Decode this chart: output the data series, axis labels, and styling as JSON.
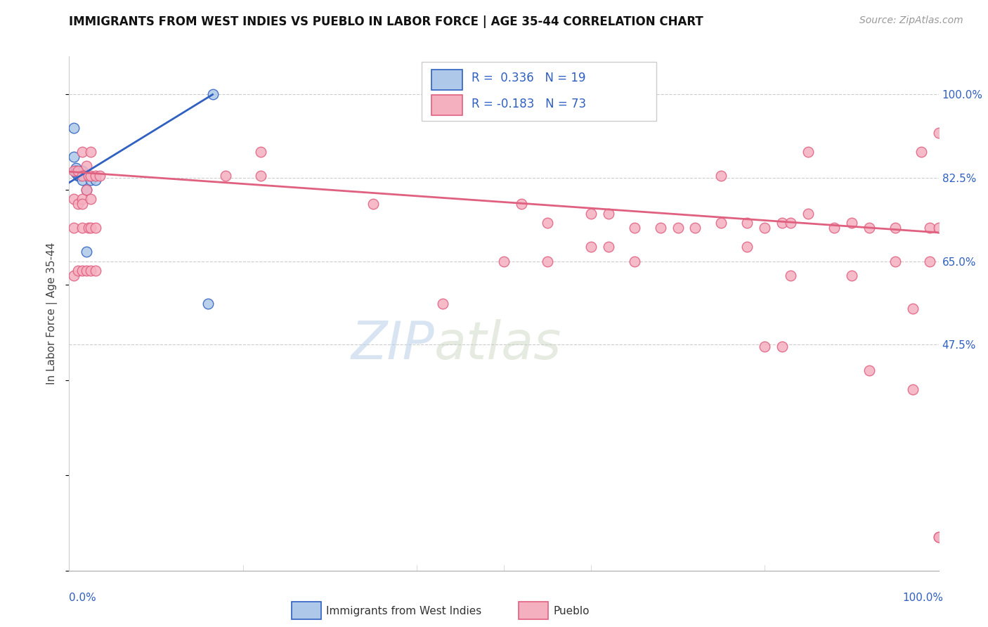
{
  "title": "IMMIGRANTS FROM WEST INDIES VS PUEBLO IN LABOR FORCE | AGE 35-44 CORRELATION CHART",
  "source": "Source: ZipAtlas.com",
  "ylabel": "In Labor Force | Age 35-44",
  "legend_blue_r": "R =  0.336",
  "legend_blue_n": "N = 19",
  "legend_pink_r": "R = -0.183",
  "legend_pink_n": "N = 73",
  "blue_scatter_x": [
    0.005,
    0.005,
    0.008,
    0.008,
    0.008,
    0.01,
    0.01,
    0.01,
    0.012,
    0.012,
    0.012,
    0.015,
    0.015,
    0.02,
    0.02,
    0.025,
    0.03,
    0.16,
    0.165
  ],
  "blue_scatter_y": [
    0.93,
    0.87,
    0.845,
    0.84,
    0.835,
    0.835,
    0.835,
    0.83,
    0.83,
    0.83,
    0.835,
    0.84,
    0.82,
    0.67,
    0.8,
    0.82,
    0.82,
    0.56,
    1.0
  ],
  "pink_scatter_x": [
    0.005,
    0.005,
    0.005,
    0.005,
    0.01,
    0.01,
    0.01,
    0.015,
    0.015,
    0.015,
    0.015,
    0.015,
    0.015,
    0.02,
    0.02,
    0.02,
    0.022,
    0.022,
    0.025,
    0.025,
    0.025,
    0.025,
    0.025,
    0.03,
    0.03,
    0.03,
    0.035,
    0.18,
    0.22,
    0.22,
    0.35,
    0.43,
    0.5,
    0.52,
    0.55,
    0.55,
    0.6,
    0.6,
    0.62,
    0.62,
    0.65,
    0.65,
    0.68,
    0.7,
    0.72,
    0.75,
    0.75,
    0.78,
    0.78,
    0.8,
    0.8,
    0.82,
    0.82,
    0.83,
    0.83,
    0.85,
    0.85,
    0.88,
    0.9,
    0.9,
    0.92,
    0.92,
    0.95,
    0.95,
    0.97,
    0.97,
    0.98,
    0.99,
    0.99,
    1.0,
    1.0,
    1.0,
    1.0
  ],
  "pink_scatter_y": [
    0.84,
    0.78,
    0.72,
    0.62,
    0.84,
    0.77,
    0.63,
    0.88,
    0.83,
    0.78,
    0.72,
    0.77,
    0.63,
    0.85,
    0.8,
    0.63,
    0.83,
    0.72,
    0.88,
    0.83,
    0.78,
    0.72,
    0.63,
    0.83,
    0.72,
    0.63,
    0.83,
    0.83,
    0.88,
    0.83,
    0.77,
    0.56,
    0.65,
    0.77,
    0.73,
    0.65,
    0.75,
    0.68,
    0.75,
    0.68,
    0.72,
    0.65,
    0.72,
    0.72,
    0.72,
    0.83,
    0.73,
    0.73,
    0.68,
    0.47,
    0.72,
    0.47,
    0.73,
    0.62,
    0.73,
    0.75,
    0.88,
    0.72,
    0.73,
    0.62,
    0.72,
    0.42,
    0.65,
    0.72,
    0.38,
    0.55,
    0.88,
    0.72,
    0.65,
    0.92,
    0.72,
    0.07,
    0.07
  ],
  "blue_line_x": [
    0.0,
    0.165
  ],
  "blue_line_y": [
    0.815,
    1.0
  ],
  "pink_line_x": [
    0.0,
    1.0
  ],
  "pink_line_y": [
    0.838,
    0.71
  ],
  "blue_color": "#adc8e8",
  "pink_color": "#f5b0c0",
  "blue_line_color": "#3060c0",
  "pink_line_color": "#e06080",
  "background_color": "#ffffff",
  "watermark_zip": "ZIP",
  "watermark_atlas": "atlas",
  "xlim": [
    0.0,
    1.0
  ],
  "ylim": [
    0.0,
    1.08
  ],
  "ytick_vals": [
    0.475,
    0.65,
    0.825,
    1.0
  ],
  "ytick_labels": [
    "47.5%",
    "65.0%",
    "82.5%",
    "100.0%"
  ]
}
